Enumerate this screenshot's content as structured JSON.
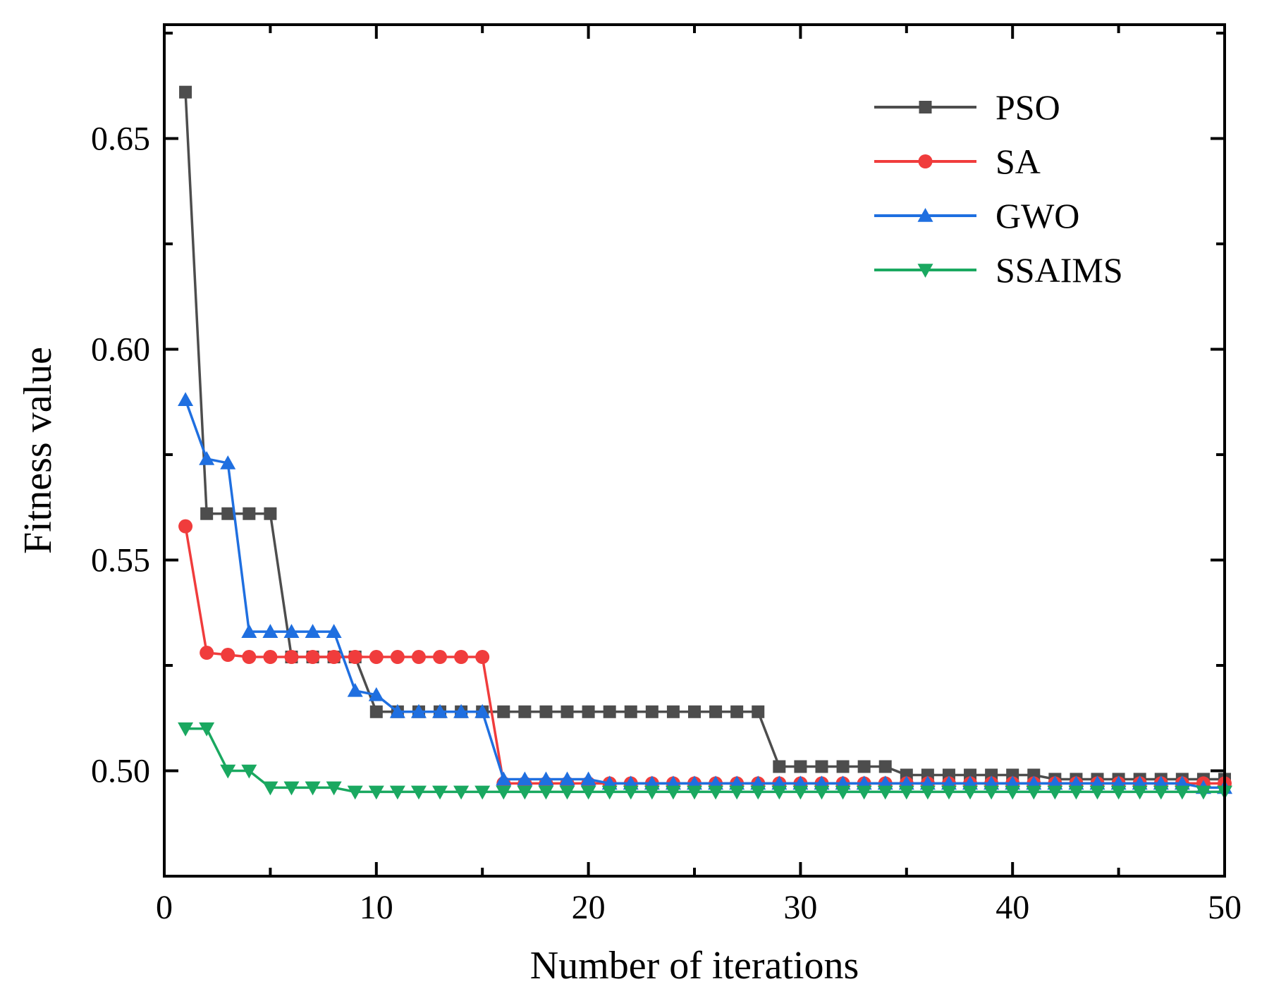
{
  "chart_data": {
    "type": "line",
    "title": "",
    "xlabel": "Number of iterations",
    "ylabel": "Fitness value",
    "xlim": [
      0,
      50
    ],
    "ylim": [
      0.475,
      0.677
    ],
    "xticks": [
      0,
      10,
      20,
      30,
      40,
      50
    ],
    "xtick_labels": [
      "0",
      "10",
      "20",
      "30",
      "40",
      "50"
    ],
    "yticks": [
      0.5,
      0.55,
      0.6,
      0.65
    ],
    "ytick_labels": [
      "0.50",
      "0.55",
      "0.60",
      "0.65"
    ],
    "grid": false,
    "legend_position": "top-right",
    "x": [
      1,
      2,
      3,
      4,
      5,
      6,
      7,
      8,
      9,
      10,
      11,
      12,
      13,
      14,
      15,
      16,
      17,
      18,
      19,
      20,
      21,
      22,
      23,
      24,
      25,
      26,
      27,
      28,
      29,
      30,
      31,
      32,
      33,
      34,
      35,
      36,
      37,
      38,
      39,
      40,
      41,
      42,
      43,
      44,
      45,
      46,
      47,
      48,
      49,
      50
    ],
    "series": [
      {
        "name": "PSO",
        "color": "#4d4d4d",
        "marker": "square",
        "values": [
          0.661,
          0.561,
          0.561,
          0.561,
          0.561,
          0.527,
          0.527,
          0.527,
          0.527,
          0.514,
          0.514,
          0.514,
          0.514,
          0.514,
          0.514,
          0.514,
          0.514,
          0.514,
          0.514,
          0.514,
          0.514,
          0.514,
          0.514,
          0.514,
          0.514,
          0.514,
          0.514,
          0.514,
          0.501,
          0.501,
          0.501,
          0.501,
          0.501,
          0.501,
          0.499,
          0.499,
          0.499,
          0.499,
          0.499,
          0.499,
          0.499,
          0.498,
          0.498,
          0.498,
          0.498,
          0.498,
          0.498,
          0.498,
          0.498,
          0.498
        ]
      },
      {
        "name": "SA",
        "color": "#f03c3c",
        "marker": "circle",
        "values": [
          0.558,
          0.528,
          0.5275,
          0.527,
          0.527,
          0.527,
          0.527,
          0.527,
          0.527,
          0.527,
          0.527,
          0.527,
          0.527,
          0.527,
          0.527,
          0.497,
          0.497,
          0.497,
          0.497,
          0.497,
          0.497,
          0.497,
          0.497,
          0.497,
          0.497,
          0.497,
          0.497,
          0.497,
          0.497,
          0.497,
          0.497,
          0.497,
          0.497,
          0.497,
          0.497,
          0.497,
          0.497,
          0.497,
          0.497,
          0.497,
          0.497,
          0.497,
          0.497,
          0.497,
          0.497,
          0.497,
          0.497,
          0.497,
          0.497,
          0.497
        ]
      },
      {
        "name": "GWO",
        "color": "#1f6fe0",
        "marker": "triangle-up",
        "values": [
          0.588,
          0.574,
          0.573,
          0.533,
          0.533,
          0.533,
          0.533,
          0.533,
          0.519,
          0.518,
          0.514,
          0.514,
          0.514,
          0.514,
          0.514,
          0.498,
          0.498,
          0.498,
          0.498,
          0.498,
          0.497,
          0.497,
          0.497,
          0.497,
          0.497,
          0.497,
          0.497,
          0.497,
          0.497,
          0.497,
          0.497,
          0.497,
          0.497,
          0.497,
          0.497,
          0.497,
          0.497,
          0.497,
          0.497,
          0.497,
          0.497,
          0.497,
          0.497,
          0.497,
          0.497,
          0.497,
          0.497,
          0.497,
          0.496,
          0.496
        ]
      },
      {
        "name": "SSAIMS",
        "color": "#1aa860",
        "marker": "triangle-down",
        "values": [
          0.51,
          0.51,
          0.5,
          0.5,
          0.496,
          0.496,
          0.496,
          0.496,
          0.495,
          0.495,
          0.495,
          0.495,
          0.495,
          0.495,
          0.495,
          0.495,
          0.495,
          0.495,
          0.495,
          0.495,
          0.495,
          0.495,
          0.495,
          0.495,
          0.495,
          0.495,
          0.495,
          0.495,
          0.495,
          0.495,
          0.495,
          0.495,
          0.495,
          0.495,
          0.495,
          0.495,
          0.495,
          0.495,
          0.495,
          0.495,
          0.495,
          0.495,
          0.495,
          0.495,
          0.495,
          0.495,
          0.495,
          0.495,
          0.495,
          0.495
        ]
      }
    ]
  }
}
